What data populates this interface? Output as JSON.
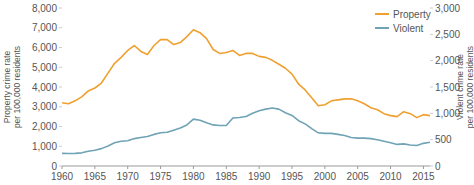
{
  "chart_data": {
    "type": "line",
    "y_label": [
      "Property crime rate",
      "per 100,000 residents"
    ],
    "y2_label": [
      "Violent crime rate",
      "per 100,000 residents"
    ],
    "x": [
      1960,
      1961,
      1962,
      1963,
      1964,
      1965,
      1966,
      1967,
      1968,
      1969,
      1970,
      1971,
      1972,
      1973,
      1974,
      1975,
      1976,
      1977,
      1978,
      1979,
      1980,
      1981,
      1982,
      1983,
      1984,
      1985,
      1986,
      1987,
      1988,
      1989,
      1990,
      1991,
      1992,
      1993,
      1994,
      1995,
      1996,
      1997,
      1998,
      1999,
      2000,
      2001,
      2002,
      2003,
      2004,
      2005,
      2006,
      2007,
      2008,
      2009,
      2010,
      2011,
      2012,
      2013,
      2014,
      2015,
      2016
    ],
    "series": [
      {
        "name": "Property",
        "color": "#f0a030",
        "values": [
          3200,
          3150,
          3300,
          3500,
          3800,
          3950,
          4200,
          4700,
          5200,
          5500,
          5850,
          6100,
          5800,
          5650,
          6100,
          6400,
          6400,
          6150,
          6250,
          6550,
          6900,
          6750,
          6450,
          5900,
          5700,
          5750,
          5850,
          5600,
          5700,
          5700,
          5550,
          5500,
          5350,
          5150,
          4950,
          4650,
          4150,
          3850,
          3450,
          3050,
          3100,
          3300,
          3350,
          3400,
          3400,
          3300,
          3150,
          2950,
          2850,
          2650,
          2550,
          2500,
          2750,
          2650,
          2450,
          2600,
          2550
        ]
      },
      {
        "name": "Violent",
        "color": "#6fa3b5",
        "axis": "y2",
        "values": [
          240,
          236,
          240,
          250,
          280,
          300,
          330,
          380,
          440,
          470,
          480,
          520,
          540,
          560,
          600,
          630,
          640,
          680,
          720,
          780,
          890,
          870,
          820,
          780,
          770,
          770,
          910,
          920,
          940,
          1000,
          1050,
          1080,
          1100,
          1080,
          1010,
          960,
          860,
          800,
          710,
          630,
          620,
          620,
          600,
          580,
          540,
          530,
          530,
          520,
          500,
          470,
          440,
          410,
          420,
          400,
          390,
          430,
          450
        ]
      }
    ],
    "xlim": [
      1960,
      2016
    ],
    "xticks": [
      1960,
      1965,
      1970,
      1975,
      1980,
      1985,
      1990,
      1995,
      2000,
      2005,
      2010,
      2015
    ],
    "ylim": [
      0,
      8000
    ],
    "yticks": [
      0,
      {
        "value": 1000,
        "label": "1,000"
      },
      {
        "value": 2000,
        "label": "2,000"
      },
      {
        "value": 3000,
        "label": "3,000"
      },
      {
        "value": 4000,
        "label": "4,000"
      },
      {
        "value": 5000,
        "label": "5,000"
      },
      {
        "value": 6000,
        "label": "6,000"
      },
      {
        "value": 7000,
        "label": "7,000"
      },
      {
        "value": 8000,
        "label": "8,000"
      }
    ],
    "y2lim": [
      0,
      3000
    ],
    "y2ticks": [
      0,
      500,
      {
        "value": 1000,
        "label": "1,000"
      },
      {
        "value": 1500,
        "label": "1,500"
      },
      {
        "value": 2000,
        "label": "2,000"
      },
      {
        "value": 2500,
        "label": "2,500"
      },
      {
        "value": 3000,
        "label": "3,000"
      }
    ],
    "grid": false,
    "legend": "upper right"
  }
}
